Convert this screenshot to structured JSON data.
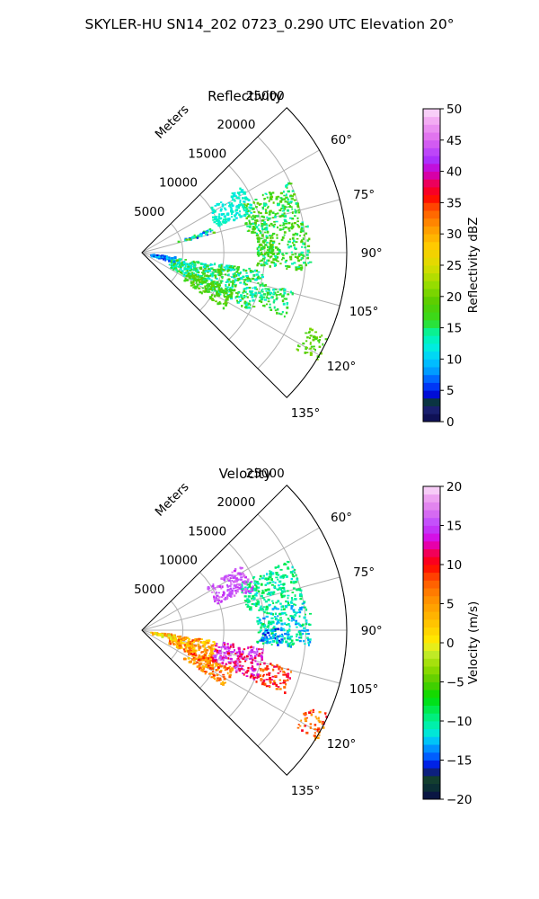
{
  "figure_title": "SKYLER-HU  SN14_202  0723_0.290 UTC Elevation 20°",
  "chart_data": [
    {
      "type": "heatmap",
      "projection": "polar-sector",
      "title": "Reflectivity",
      "radial_axis_label": "Meters",
      "radial_ticks": [
        5000,
        10000,
        15000,
        20000,
        25000
      ],
      "radial_tick_labels": [
        "5000",
        "10000",
        "15000",
        "20000",
        "25000"
      ],
      "r_max": 25000,
      "angle_range_deg": [
        45,
        135
      ],
      "angle_ticks": [
        60,
        75,
        90,
        105,
        120,
        135
      ],
      "angle_tick_labels": [
        "60°",
        "75°",
        "90°",
        "105°",
        "120°",
        "135°"
      ],
      "colorbar": {
        "label": "Reflectivity dBZ",
        "min": 0,
        "max": 50,
        "ticks": [
          0,
          5,
          10,
          15,
          20,
          25,
          30,
          35,
          40,
          45,
          50
        ],
        "tick_labels": [
          "0",
          "5",
          "10",
          "15",
          "20",
          "25",
          "30",
          "35",
          "40",
          "45",
          "50"
        ]
      },
      "echo_regions": [
        {
          "az": [
            64,
            80
          ],
          "r": [
            13000,
            20000
          ],
          "value": [
            13,
            20
          ]
        },
        {
          "az": [
            80,
            96
          ],
          "r": [
            14000,
            20500
          ],
          "value": [
            13,
            20
          ]
        },
        {
          "az": [
            56,
            70
          ],
          "r": [
            9500,
            14500
          ],
          "value": [
            11,
            14
          ]
        },
        {
          "az": [
            98,
            118
          ],
          "r": [
            3500,
            15000
          ],
          "value": [
            11,
            19
          ]
        },
        {
          "az": [
            112,
            124
          ],
          "r": [
            6000,
            12000
          ],
          "value": [
            16,
            20
          ]
        },
        {
          "az": [
            104,
            114
          ],
          "r": [
            15000,
            19000
          ],
          "value": [
            12,
            18
          ]
        },
        {
          "az": [
            114,
            122
          ],
          "r": [
            22000,
            25000
          ],
          "value": [
            17,
            21
          ]
        },
        {
          "az": [
            96,
            106
          ],
          "r": [
            1000,
            4000
          ],
          "value": [
            4,
            12
          ]
        },
        {
          "az": [
            86,
            92
          ],
          "r": [
            14000,
            16000
          ],
          "value": [
            14,
            19
          ]
        },
        {
          "az": [
            70,
            74
          ],
          "r": [
            4500,
            9000
          ],
          "value": [
            4,
            20
          ]
        }
      ]
    },
    {
      "type": "heatmap",
      "projection": "polar-sector",
      "title": "Velocity",
      "radial_axis_label": "Meters",
      "radial_ticks": [
        5000,
        10000,
        15000,
        20000,
        25000
      ],
      "radial_tick_labels": [
        "5000",
        "10000",
        "15000",
        "20000",
        "25000"
      ],
      "r_max": 25000,
      "angle_range_deg": [
        45,
        135
      ],
      "angle_ticks": [
        60,
        75,
        90,
        105,
        120,
        135
      ],
      "angle_tick_labels": [
        "60°",
        "75°",
        "90°",
        "105°",
        "120°",
        "135°"
      ],
      "colorbar": {
        "label": "Velocity (m/s)",
        "min": -20,
        "max": 20,
        "ticks": [
          -20,
          -15,
          -10,
          -5,
          0,
          5,
          10,
          15,
          20
        ],
        "tick_labels": [
          "−20",
          "−15",
          "−10",
          "−5",
          "0",
          "5",
          "10",
          "15",
          "20"
        ]
      },
      "echo_regions": [
        {
          "az": [
            64,
            80
          ],
          "r": [
            13000,
            20000
          ],
          "value": [
            -12,
            -8
          ]
        },
        {
          "az": [
            80,
            96
          ],
          "r": [
            14000,
            20500
          ],
          "value": [
            -14,
            -8
          ]
        },
        {
          "az": [
            98,
            116
          ],
          "r": [
            3500,
            9000
          ],
          "value": [
            0,
            9
          ]
        },
        {
          "az": [
            98,
            114
          ],
          "r": [
            9000,
            15000
          ],
          "value": [
            10,
            17
          ]
        },
        {
          "az": [
            112,
            124
          ],
          "r": [
            6000,
            12000
          ],
          "value": [
            2,
            10
          ]
        },
        {
          "az": [
            56,
            70
          ],
          "r": [
            9500,
            14500
          ],
          "value": [
            14,
            17
          ]
        },
        {
          "az": [
            104,
            114
          ],
          "r": [
            15000,
            19000
          ],
          "value": [
            6,
            12
          ]
        },
        {
          "az": [
            114,
            122
          ],
          "r": [
            22000,
            25000
          ],
          "value": [
            4,
            12
          ]
        },
        {
          "az": [
            96,
            106
          ],
          "r": [
            1000,
            4000
          ],
          "value": [
            -2,
            8
          ]
        },
        {
          "az": [
            88,
            96
          ],
          "r": [
            14500,
            17000
          ],
          "value": [
            -16,
            -12
          ]
        }
      ]
    }
  ]
}
